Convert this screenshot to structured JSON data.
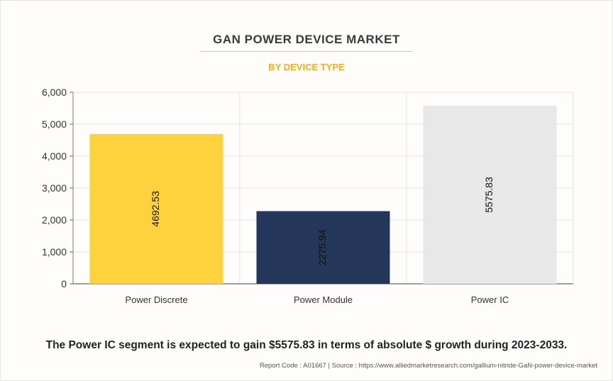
{
  "chart_data": {
    "type": "bar",
    "title": "GAN POWER DEVICE MARKET",
    "subtitle": "BY DEVICE TYPE",
    "categories": [
      "Power Discrete",
      "Power Module",
      "Power IC"
    ],
    "values": [
      4692.53,
      2275.94,
      5575.83
    ],
    "value_labels": [
      "4692.53",
      "2275.94",
      "5575.83"
    ],
    "colors": [
      "#fdd23c",
      "#24375a",
      "#e8e8e8"
    ],
    "ylim": [
      0,
      6000
    ],
    "yticks": [
      0,
      1000,
      2000,
      3000,
      4000,
      5000,
      6000
    ],
    "ytick_labels": [
      "0",
      "1,000",
      "2,000",
      "3,000",
      "4,000",
      "5,000",
      "6,000"
    ],
    "xlabel": "",
    "ylabel": "",
    "grid": true,
    "legend": "none"
  },
  "footer": {
    "headline": "The Power IC segment is expected to gain $5575.83 in terms of absolute $ growth during 2023-2033.",
    "source": "Report Code : A01667  |  Source : https://www.alliedmarketresearch.com/gallium-nitride-GaN-power-device-market"
  }
}
